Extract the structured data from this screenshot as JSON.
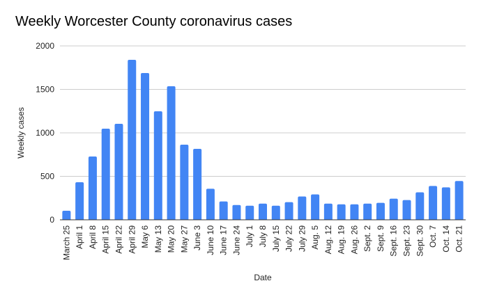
{
  "chart_data": {
    "type": "bar",
    "title": "Weekly Worcester County coronavirus cases",
    "xlabel": "Date",
    "ylabel": "Weekly cases",
    "ylim": [
      0,
      2000
    ],
    "yticks": [
      "0",
      "500",
      "1000",
      "1500",
      "2000"
    ],
    "grid": true,
    "bar_color": "#4285f4",
    "categories": [
      "March 25",
      "April 1",
      "April 8",
      "April 15",
      "April 22",
      "April 29",
      "May 6",
      "May 13",
      "May 20",
      "May 27",
      "June 3",
      "June 10",
      "June 17",
      "June 24",
      "July 1",
      "July 8",
      "July 15",
      "July 22",
      "July 29",
      "Aug. 5",
      "Aug. 12",
      "Aug. 19",
      "Aug. 26",
      "Sept. 2",
      "Sept. 9",
      "Sept. 16",
      "Sept. 23",
      "Sept. 30",
      "Oct. 7",
      "Oct. 14",
      "Oct. 21"
    ],
    "values": [
      104,
      432,
      728,
      1048,
      1104,
      1840,
      1688,
      1248,
      1536,
      864,
      816,
      357,
      211,
      170,
      162,
      186,
      162,
      203,
      268,
      292,
      186,
      178,
      178,
      186,
      195,
      243,
      227,
      316,
      389,
      373,
      446
    ]
  }
}
